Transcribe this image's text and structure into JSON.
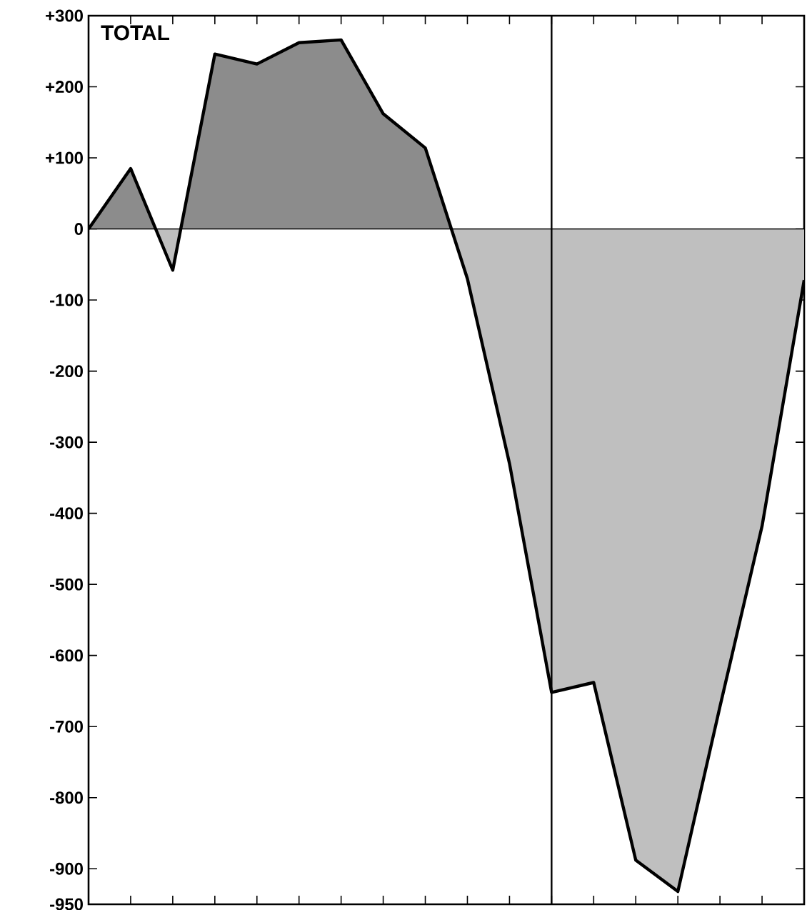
{
  "chart_data": {
    "type": "area",
    "title": "TOTAL",
    "categories": [
      null,
      null,
      null,
      null,
      null,
      null,
      null,
      null,
      null,
      null,
      null,
      null,
      null,
      null,
      null,
      null,
      null,
      null
    ],
    "values": [
      0,
      85,
      -58,
      246,
      232,
      262,
      266,
      162,
      114,
      -70,
      -330,
      -652,
      -638,
      -888,
      -932,
      -672,
      -418,
      -72
    ],
    "color": "#000000",
    "ylim": [
      -950,
      300
    ],
    "yticks": [
      {
        "value": 300,
        "label": "+300"
      },
      {
        "value": 200,
        "label": "+200"
      },
      {
        "value": 100,
        "label": "+100"
      },
      {
        "value": 0,
        "label": "0"
      },
      {
        "value": -100,
        "label": "-100"
      },
      {
        "value": -200,
        "label": "-200"
      },
      {
        "value": -300,
        "label": "-300"
      },
      {
        "value": -400,
        "label": "-400"
      },
      {
        "value": -500,
        "label": "-500"
      },
      {
        "value": -600,
        "label": "-600"
      },
      {
        "value": -700,
        "label": "-700"
      },
      {
        "value": -800,
        "label": "-800"
      },
      {
        "value": -900,
        "label": "-900"
      },
      {
        "value": -950,
        "label": "-950"
      }
    ],
    "tick_labels": "y",
    "grid": false
  }
}
